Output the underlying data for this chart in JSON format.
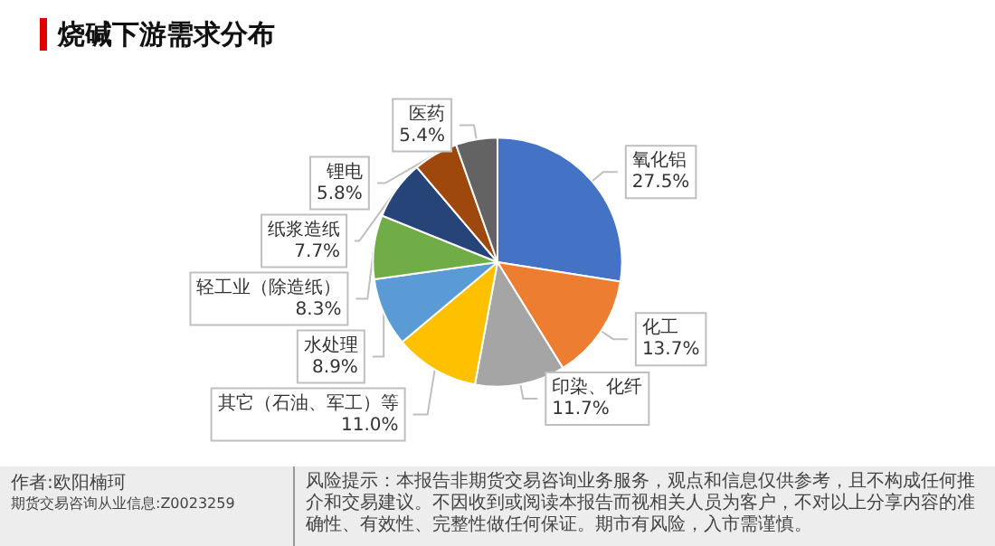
{
  "chart_data": {
    "type": "pie",
    "title": "烧碱下游需求分布",
    "categories": [
      "氧化铝",
      "化工",
      "印染、化纤",
      "其它（石油、军工）等",
      "水处理",
      "轻工业（除造纸）",
      "纸浆造纸",
      "锂电",
      "医药"
    ],
    "values": [
      27.5,
      13.7,
      11.7,
      11.0,
      8.9,
      8.3,
      7.7,
      5.8,
      5.4
    ],
    "value_labels": [
      "27.5%",
      "13.7%",
      "11.7%",
      "11.0%",
      "8.9%",
      "8.3%",
      "7.7%",
      "5.8%",
      "5.4%"
    ],
    "colors": [
      "#4472c4",
      "#ed7d31",
      "#a5a5a5",
      "#ffc000",
      "#5b9bd5",
      "#70ad47",
      "#264478",
      "#9e480e",
      "#636363"
    ],
    "annotations": [
      "作者:欧阳楠珂",
      "期货交易咨询从业信息:Z0023259",
      "风险提示：本报告非期货交易咨询业务服务，观点和信息仅供参考，且不构成任何推介和交易建议。不因收到或阅读本报告而视相关人员为客户，不对以上分享内容的准确性、有效性、完整性做任何保证。期市有风险，入市需谨慎。"
    ],
    "legend": false
  }
}
